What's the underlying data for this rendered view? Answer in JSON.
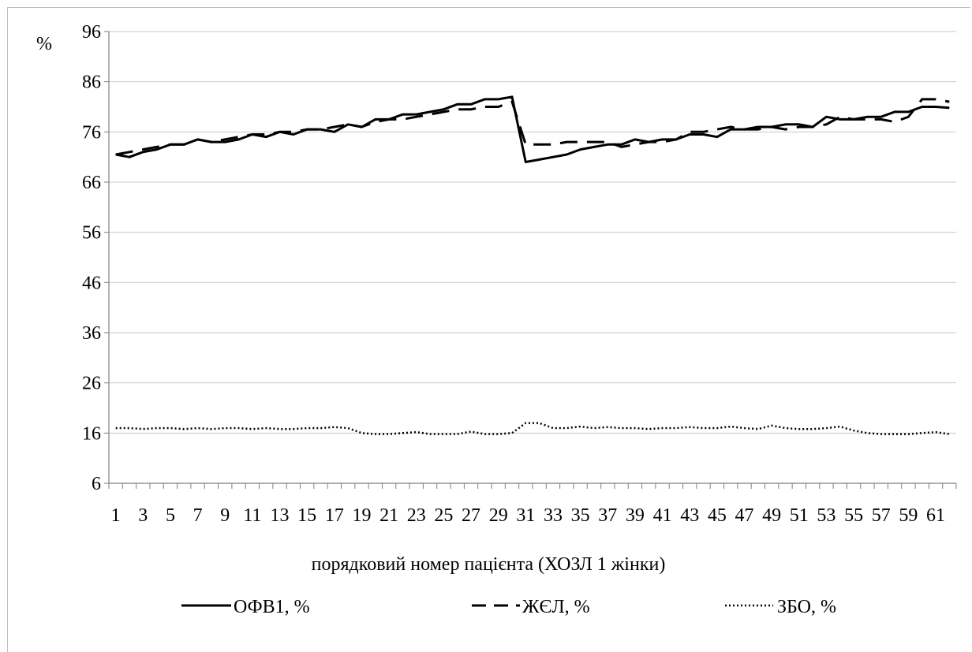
{
  "chart_data": {
    "type": "line",
    "title": "",
    "xlabel": "порядковий номер пацієнта (ХОЗЛ 1 жінки)",
    "ylabel": "%",
    "ylim": [
      6,
      96
    ],
    "yticks": [
      "6",
      "16",
      "26",
      "36",
      "46",
      "56",
      "66",
      "76",
      "86",
      "96"
    ],
    "x_tick_labels": [
      "1",
      "3",
      "5",
      "7",
      "9",
      "11",
      "13",
      "15",
      "17",
      "19",
      "21",
      "23",
      "25",
      "27",
      "29",
      "31",
      "33",
      "35",
      "37",
      "39",
      "41",
      "43",
      "45",
      "47",
      "49",
      "51",
      "53",
      "55",
      "57",
      "59",
      "61"
    ],
    "grid": "horizontal",
    "legend_position": "bottom",
    "x": [
      1,
      2,
      3,
      4,
      5,
      6,
      7,
      8,
      9,
      10,
      11,
      12,
      13,
      14,
      15,
      16,
      17,
      18,
      19,
      20,
      21,
      22,
      23,
      24,
      25,
      26,
      27,
      28,
      29,
      30,
      31,
      32,
      33,
      34,
      35,
      36,
      37,
      38,
      39,
      40,
      41,
      42,
      43,
      44,
      45,
      46,
      47,
      48,
      49,
      50,
      51,
      52,
      53,
      54,
      55,
      56,
      57,
      58,
      59,
      60,
      61,
      62
    ],
    "series": [
      {
        "name": "ОФВ1, %",
        "style": "solid",
        "color": "#000000",
        "values": [
          71.5,
          71,
          72,
          72.5,
          73.5,
          73.5,
          74.5,
          74,
          74,
          74.5,
          75.5,
          75,
          76,
          75.5,
          76.5,
          76.5,
          76,
          77.5,
          77,
          78.5,
          78.5,
          79.5,
          79.5,
          80,
          80.5,
          81.5,
          81.5,
          82.5,
          82.5,
          83,
          70,
          70.5,
          71,
          71.5,
          72.5,
          73,
          73.5,
          73.5,
          74.5,
          74,
          74.5,
          74.5,
          75.5,
          75.5,
          75,
          76.5,
          76.5,
          77,
          77,
          77.5,
          77.5,
          77,
          79,
          78.5,
          78.5,
          79,
          79,
          80,
          80,
          81,
          81,
          80.8
        ]
      },
      {
        "name": "ЖЄЛ, %",
        "style": "dashed",
        "color": "#000000",
        "values": [
          71.5,
          72,
          72.5,
          73,
          73.5,
          73.5,
          74.5,
          74,
          74.5,
          75,
          75.5,
          75.5,
          76,
          76,
          76.5,
          76.5,
          77,
          77.5,
          77,
          78,
          78.5,
          78.5,
          79,
          79.5,
          80,
          80.5,
          80.5,
          81,
          81,
          82,
          73.5,
          73.5,
          73.5,
          74,
          74,
          74,
          74,
          73,
          73.5,
          74,
          74,
          74.5,
          76,
          76,
          76.5,
          77,
          76.5,
          76.5,
          77,
          76.5,
          77,
          77,
          77.5,
          79,
          78.5,
          78.5,
          78.5,
          78,
          79,
          82.5,
          82.5,
          82
        ]
      },
      {
        "name": "ЗБО, %",
        "style": "dotted",
        "color": "#000000",
        "values": [
          17,
          17,
          16.8,
          17,
          17,
          16.8,
          17,
          16.8,
          17,
          17,
          16.8,
          17,
          16.8,
          16.8,
          17,
          17,
          17.2,
          17,
          16,
          15.8,
          15.8,
          16,
          16.2,
          15.8,
          15.8,
          15.8,
          16.3,
          15.8,
          15.8,
          16,
          18,
          18,
          17,
          17,
          17.3,
          17,
          17.2,
          17,
          17,
          16.8,
          17,
          17,
          17.2,
          17,
          17,
          17.3,
          17,
          16.8,
          17.5,
          17,
          16.8,
          16.8,
          17,
          17.3,
          16.5,
          16,
          15.8,
          15.8,
          15.8,
          16,
          16.2,
          15.8
        ]
      }
    ]
  }
}
